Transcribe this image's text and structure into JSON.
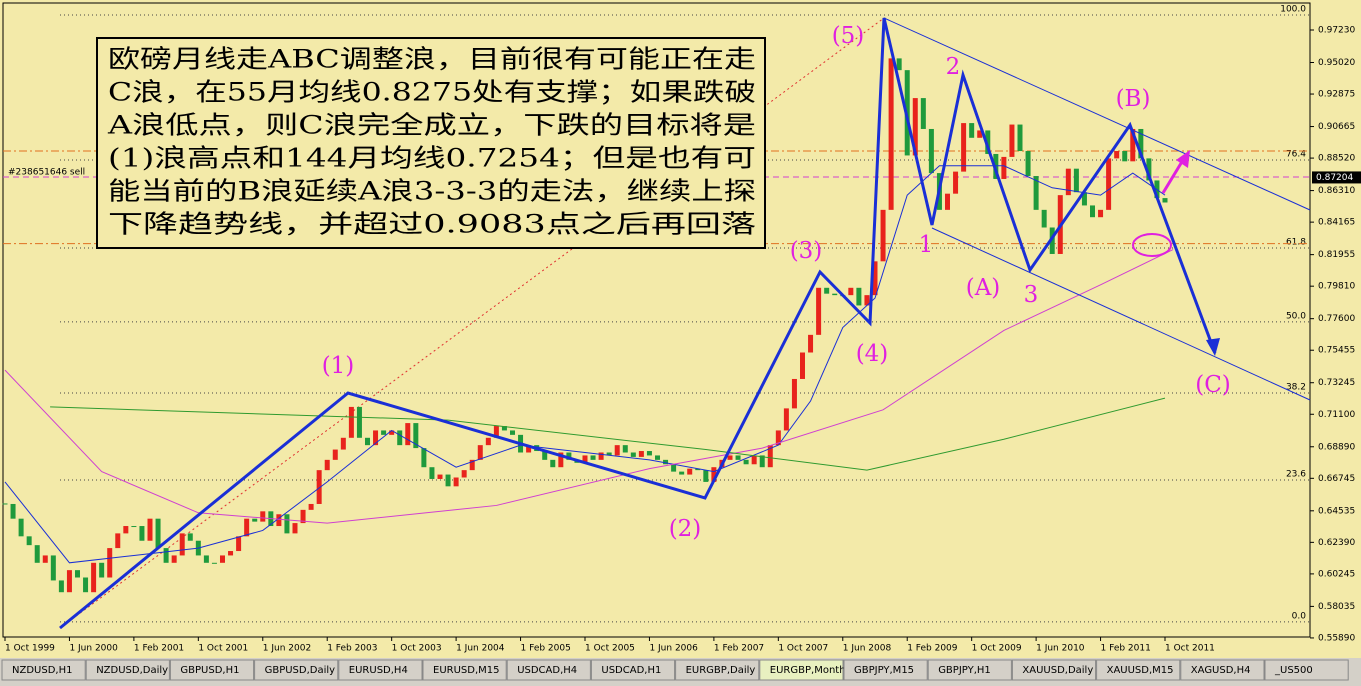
{
  "chart_data": {
    "type": "candlestick",
    "closes": [
      0.65,
      0.64,
      0.628,
      0.622,
      0.61,
      0.615,
      0.598,
      0.59,
      0.605,
      0.6,
      0.59,
      0.61,
      0.6,
      0.62,
      0.63,
      0.635,
      0.635,
      0.625,
      0.64,
      0.62,
      0.61,
      0.615,
      0.63,
      0.625,
      0.615,
      0.61,
      0.61,
      0.615,
      0.618,
      0.628,
      0.64,
      0.638,
      0.645,
      0.635,
      0.643,
      0.63,
      0.637,
      0.646,
      0.65,
      0.673,
      0.68,
      0.687,
      0.695,
      0.716,
      0.695,
      0.69,
      0.7,
      0.697,
      0.7,
      0.69,
      0.705,
      0.688,
      0.675,
      0.667,
      0.67,
      0.662,
      0.668,
      0.673,
      0.68,
      0.69,
      0.695,
      0.703,
      0.7,
      0.697,
      0.685,
      0.69,
      0.686,
      0.68,
      0.675,
      0.685,
      0.68,
      0.678,
      0.683,
      0.68,
      0.685,
      0.683,
      0.69,
      0.685,
      0.682,
      0.686,
      0.683,
      0.68,
      0.677,
      0.672,
      0.67,
      0.674,
      0.673,
      0.665,
      0.675,
      0.68,
      0.683,
      0.68,
      0.677,
      0.683,
      0.675,
      0.69,
      0.7,
      0.715,
      0.735,
      0.753,
      0.765,
      0.797,
      0.793,
      0.792,
      0.792,
      0.797,
      0.785,
      0.792,
      0.815,
      0.85,
      0.953,
      0.945,
      0.887,
      0.926,
      0.905,
      0.875,
      0.85,
      0.861,
      0.876,
      0.909,
      0.899,
      0.904,
      0.888,
      0.871,
      0.886,
      0.908,
      0.89,
      0.873,
      0.85,
      0.838,
      0.82,
      0.86,
      0.878,
      0.862,
      0.853,
      0.845,
      0.85,
      0.885,
      0.89,
      0.883,
      0.905,
      0.885,
      0.87,
      0.858,
      0.855
    ],
    "up_color": "#e8231c",
    "down_color": "#1f9a3c",
    "lines": [
      {
        "color": "#1a2fd6",
        "x": [
          0,
          8,
          16,
          24,
          32,
          40,
          48,
          56,
          64,
          72,
          80,
          88,
          96,
          100,
          104,
          108,
          112,
          116,
          124,
          130,
          136,
          140,
          144
        ],
        "values": [
          0.665,
          0.61,
          0.615,
          0.62,
          0.632,
          0.665,
          0.7,
          0.675,
          0.69,
          0.685,
          0.68,
          0.672,
          0.69,
          0.72,
          0.77,
          0.79,
          0.86,
          0.88,
          0.88,
          0.865,
          0.86,
          0.875,
          0.86
        ]
      },
      {
        "color": "#d040d0",
        "x": [
          0,
          12,
          24,
          40,
          61,
          80,
          94,
          109,
          124,
          136,
          145
        ],
        "values": [
          0.741,
          0.672,
          0.644,
          0.637,
          0.649,
          0.674,
          0.688,
          0.714,
          0.768,
          0.799,
          0.823
        ]
      },
      {
        "color": "#2f9a2f",
        "x": [
          5.6,
          55,
          87,
          107,
          124,
          144
        ],
        "values": [
          0.716,
          0.707,
          0.687,
          0.673,
          0.694,
          0.722
        ]
      }
    ],
    "fib_levels": [
      {
        "label": "100.0",
        "value": 0.9825
      },
      {
        "label": "76.4",
        "value": 0.8839
      },
      {
        "label": "61.8",
        "value": 0.8241
      },
      {
        "label": "50.0",
        "value": 0.7738
      },
      {
        "label": "38.2",
        "value": 0.7255
      },
      {
        "label": "23.6",
        "value": 0.6663
      },
      {
        "label": "0.0",
        "value": 0.5698
      }
    ],
    "orange_levels": [
      0.89,
      0.827
    ],
    "order": {
      "label": "#238651646 sell",
      "value": 0.8723
    },
    "current_price": {
      "value": 0.87204,
      "label": "0.87204"
    },
    "ylim": [
      0.5473,
      0.9927
    ],
    "yticks": [
      {
        "value": 0.9723,
        "label": "0.97230"
      },
      {
        "value": 0.9502,
        "label": "0.95020"
      },
      {
        "value": 0.92875,
        "label": "0.92875"
      },
      {
        "value": 0.90665,
        "label": "0.90665"
      },
      {
        "value": 0.8852,
        "label": "0.88520"
      },
      {
        "value": 0.8631,
        "label": "0.86310"
      },
      {
        "value": 0.84165,
        "label": "0.84165"
      },
      {
        "value": 0.81955,
        "label": "0.81955"
      },
      {
        "value": 0.7981,
        "label": "0.79810"
      },
      {
        "value": 0.776,
        "label": "0.77600"
      },
      {
        "value": 0.75455,
        "label": "0.75455"
      },
      {
        "value": 0.73245,
        "label": "0.73245"
      },
      {
        "value": 0.711,
        "label": "0.71100"
      },
      {
        "value": 0.6889,
        "label": "0.68890"
      },
      {
        "value": 0.66745,
        "label": "0.66745"
      },
      {
        "value": 0.64535,
        "label": "0.64535"
      },
      {
        "value": 0.6239,
        "label": "0.62390"
      },
      {
        "value": 0.60245,
        "label": "0.60245"
      },
      {
        "value": 0.58035,
        "label": "0.58035"
      },
      {
        "value": 0.5589,
        "label": "0.55890"
      }
    ],
    "xlim": [
      -0.62,
      162
    ],
    "xticks": [
      {
        "value": 0,
        "label": "1 Oct 1999"
      },
      {
        "value": 8,
        "label": "1 Jun 2000"
      },
      {
        "value": 16,
        "label": "1 Feb 2001"
      },
      {
        "value": 24,
        "label": "1 Oct 2001"
      },
      {
        "value": 32,
        "label": "1 Jun 2002"
      },
      {
        "value": 40,
        "label": "1 Feb 2003"
      },
      {
        "value": 48,
        "label": "1 Oct 2003"
      },
      {
        "value": 56,
        "label": "1 Jun 2004"
      },
      {
        "value": 64,
        "label": "1 Feb 2005"
      },
      {
        "value": 72,
        "label": "1 Oct 2005"
      },
      {
        "value": 80,
        "label": "1 Jun 2006"
      },
      {
        "value": 88,
        "label": "1 Feb 2007"
      },
      {
        "value": 96,
        "label": "1 Oct 2007"
      },
      {
        "value": 104,
        "label": "1 Jun 2008"
      },
      {
        "value": 112,
        "label": "1 Feb 2009"
      },
      {
        "value": 120,
        "label": "1 Oct 2009"
      },
      {
        "value": 128,
        "label": "1 Jun 2010"
      },
      {
        "value": 136,
        "label": "1 Feb 2011"
      },
      {
        "value": 144,
        "label": "1 Oct 2011"
      }
    ],
    "wave_labels": [
      "(5)",
      "2",
      "(B)",
      "(3)",
      "1",
      "(A)",
      "3",
      "(4)",
      "(1)",
      "(2)",
      "(C)"
    ],
    "note": [
      "欧磅月线走ABC调整浪，目前很有可能正在走",
      "C浪，在55月均线0.8275处有支撑；如果跌破",
      "A浪低点，则C浪完全成立，下跌的目标将是",
      "(1)浪高点和144月均线0.7254；但是也有可",
      "能当前的B浪延续A浪3-3-3的走法，继续上探",
      "下降趋势线，并超过0.9083点之后再回落"
    ]
  },
  "tabs": [
    "NZDUSD,H1",
    "NZDUSD,Daily",
    "GBPUSD,H1",
    "GBPUSD,Daily",
    "EURUSD,H4",
    "EURUSD,M15",
    "USDCAD,H4",
    "USDCAD,H1",
    "EURGBP,Daily",
    "EURGBP,Monthly",
    "GBPJPY,M15",
    "GBPJPY,H1",
    "XAUUSD,Daily",
    "XAUUSD,M15",
    "XAGUSD,H4",
    "_US500"
  ],
  "active_tab": 9
}
